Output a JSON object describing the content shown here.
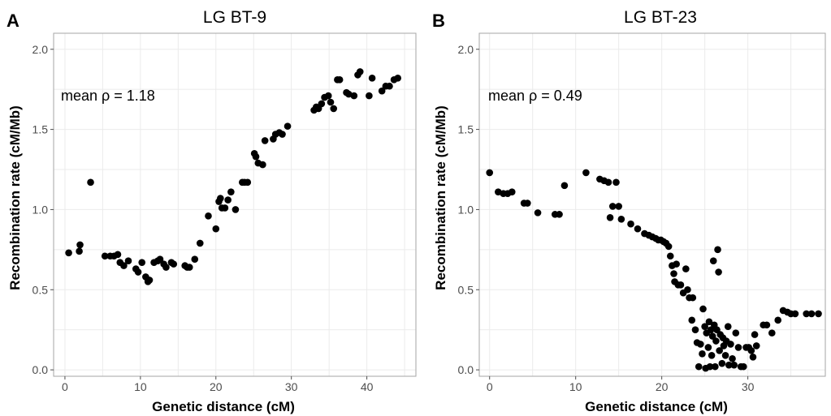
{
  "chart_data": [
    {
      "type": "scatter",
      "panel_label": "A",
      "title": "LG BT-9",
      "xlabel": "Genetic distance (cM)",
      "ylabel": "Recombination rate (cM/Mb)",
      "annotation": "mean ρ  = 1.18",
      "xlim": [
        -1.5,
        46.5
      ],
      "ylim": [
        -0.04,
        2.1
      ],
      "xticks": [
        0,
        10,
        20,
        30,
        40
      ],
      "yticks": [
        0.0,
        0.5,
        1.0,
        1.5,
        2.0
      ],
      "ytick_labels": [
        "0.0",
        "0.5",
        "1.0",
        "1.5",
        "2.0"
      ],
      "grid": true,
      "points": [
        [
          0.5,
          0.73
        ],
        [
          1.9,
          0.74
        ],
        [
          2.0,
          0.78
        ],
        [
          3.4,
          1.17
        ],
        [
          5.3,
          0.71
        ],
        [
          6.0,
          0.71
        ],
        [
          6.5,
          0.71
        ],
        [
          7.0,
          0.72
        ],
        [
          7.3,
          0.67
        ],
        [
          7.8,
          0.65
        ],
        [
          8.4,
          0.68
        ],
        [
          9.4,
          0.63
        ],
        [
          9.7,
          0.61
        ],
        [
          10.2,
          0.67
        ],
        [
          10.7,
          0.58
        ],
        [
          11.0,
          0.55
        ],
        [
          11.2,
          0.56
        ],
        [
          11.8,
          0.67
        ],
        [
          12.3,
          0.68
        ],
        [
          12.6,
          0.69
        ],
        [
          13.1,
          0.66
        ],
        [
          13.4,
          0.64
        ],
        [
          14.1,
          0.67
        ],
        [
          14.4,
          0.66
        ],
        [
          15.9,
          0.65
        ],
        [
          16.2,
          0.64
        ],
        [
          16.5,
          0.64
        ],
        [
          17.2,
          0.69
        ],
        [
          17.9,
          0.79
        ],
        [
          19.0,
          0.96
        ],
        [
          20.0,
          0.88
        ],
        [
          20.4,
          1.05
        ],
        [
          20.6,
          1.07
        ],
        [
          20.8,
          1.01
        ],
        [
          21.2,
          1.01
        ],
        [
          21.6,
          1.06
        ],
        [
          22.0,
          1.11
        ],
        [
          22.6,
          1.0
        ],
        [
          23.5,
          1.17
        ],
        [
          23.8,
          1.17
        ],
        [
          24.2,
          1.17
        ],
        [
          25.1,
          1.35
        ],
        [
          25.3,
          1.33
        ],
        [
          25.6,
          1.29
        ],
        [
          26.2,
          1.28
        ],
        [
          26.5,
          1.43
        ],
        [
          27.6,
          1.44
        ],
        [
          27.9,
          1.47
        ],
        [
          28.4,
          1.48
        ],
        [
          28.8,
          1.47
        ],
        [
          29.5,
          1.52
        ],
        [
          33.0,
          1.62
        ],
        [
          33.3,
          1.64
        ],
        [
          33.6,
          1.63
        ],
        [
          34.0,
          1.66
        ],
        [
          34.4,
          1.7
        ],
        [
          34.9,
          1.71
        ],
        [
          35.2,
          1.67
        ],
        [
          35.6,
          1.63
        ],
        [
          36.1,
          1.81
        ],
        [
          36.4,
          1.81
        ],
        [
          37.3,
          1.73
        ],
        [
          37.6,
          1.72
        ],
        [
          38.3,
          1.71
        ],
        [
          38.8,
          1.84
        ],
        [
          39.1,
          1.86
        ],
        [
          40.3,
          1.71
        ],
        [
          40.7,
          1.82
        ],
        [
          42.0,
          1.74
        ],
        [
          42.5,
          1.77
        ],
        [
          43.0,
          1.77
        ],
        [
          43.6,
          1.81
        ],
        [
          44.1,
          1.82
        ]
      ]
    },
    {
      "type": "scatter",
      "panel_label": "B",
      "title": "LG BT-23",
      "xlabel": "Genetic distance (cM)",
      "ylabel": "Recombination rate (cM/Mb)",
      "annotation": "mean ρ  = 0.49",
      "xlim": [
        -1.2,
        39.0
      ],
      "ylim": [
        -0.04,
        2.1
      ],
      "xticks": [
        0,
        10,
        20,
        30
      ],
      "yticks": [
        0.0,
        0.5,
        1.0,
        1.5,
        2.0
      ],
      "ytick_labels": [
        "0.0",
        "0.5",
        "1.0",
        "1.5",
        "2.0"
      ],
      "grid": true,
      "points": [
        [
          0.0,
          1.23
        ],
        [
          1.0,
          1.11
        ],
        [
          1.6,
          1.1
        ],
        [
          2.1,
          1.1
        ],
        [
          2.6,
          1.11
        ],
        [
          4.0,
          1.04
        ],
        [
          4.4,
          1.04
        ],
        [
          5.6,
          0.98
        ],
        [
          7.6,
          0.97
        ],
        [
          8.1,
          0.97
        ],
        [
          8.7,
          1.15
        ],
        [
          11.2,
          1.23
        ],
        [
          12.8,
          1.19
        ],
        [
          13.3,
          1.18
        ],
        [
          13.8,
          1.17
        ],
        [
          14.0,
          0.95
        ],
        [
          14.3,
          1.02
        ],
        [
          14.7,
          1.17
        ],
        [
          15.0,
          1.02
        ],
        [
          15.3,
          0.94
        ],
        [
          16.4,
          0.91
        ],
        [
          17.2,
          0.88
        ],
        [
          18.0,
          0.85
        ],
        [
          18.5,
          0.84
        ],
        [
          18.9,
          0.83
        ],
        [
          19.3,
          0.82
        ],
        [
          19.6,
          0.81
        ],
        [
          19.9,
          0.81
        ],
        [
          20.2,
          0.8
        ],
        [
          20.5,
          0.79
        ],
        [
          20.8,
          0.77
        ],
        [
          21.0,
          0.71
        ],
        [
          21.2,
          0.65
        ],
        [
          21.4,
          0.6
        ],
        [
          21.5,
          0.55
        ],
        [
          21.7,
          0.66
        ],
        [
          21.9,
          0.53
        ],
        [
          22.2,
          0.53
        ],
        [
          22.5,
          0.48
        ],
        [
          22.8,
          0.63
        ],
        [
          23.0,
          0.5
        ],
        [
          23.2,
          0.45
        ],
        [
          23.5,
          0.31
        ],
        [
          23.6,
          0.45
        ],
        [
          23.9,
          0.25
        ],
        [
          24.1,
          0.17
        ],
        [
          24.3,
          0.02
        ],
        [
          24.5,
          0.16
        ],
        [
          24.7,
          0.1
        ],
        [
          24.8,
          0.38
        ],
        [
          25.0,
          0.27
        ],
        [
          25.1,
          0.01
        ],
        [
          25.2,
          0.23
        ],
        [
          25.4,
          0.14
        ],
        [
          25.5,
          0.3
        ],
        [
          25.6,
          0.02
        ],
        [
          25.7,
          0.25
        ],
        [
          25.8,
          0.09
        ],
        [
          25.9,
          0.21
        ],
        [
          26.0,
          0.68
        ],
        [
          26.1,
          0.28
        ],
        [
          26.2,
          0.02
        ],
        [
          26.3,
          0.18
        ],
        [
          26.4,
          0.25
        ],
        [
          26.5,
          0.75
        ],
        [
          26.6,
          0.61
        ],
        [
          26.7,
          0.12
        ],
        [
          26.8,
          0.22
        ],
        [
          27.0,
          0.04
        ],
        [
          27.1,
          0.2
        ],
        [
          27.2,
          0.15
        ],
        [
          27.4,
          0.09
        ],
        [
          27.5,
          0.18
        ],
        [
          27.7,
          0.27
        ],
        [
          27.8,
          0.03
        ],
        [
          28.0,
          0.16
        ],
        [
          28.2,
          0.07
        ],
        [
          28.4,
          0.03
        ],
        [
          28.6,
          0.23
        ],
        [
          28.9,
          0.14
        ],
        [
          29.2,
          0.02
        ],
        [
          29.5,
          0.02
        ],
        [
          29.8,
          0.14
        ],
        [
          30.1,
          0.14
        ],
        [
          30.4,
          0.12
        ],
        [
          30.6,
          0.08
        ],
        [
          30.8,
          0.22
        ],
        [
          31.0,
          0.15
        ],
        [
          31.8,
          0.28
        ],
        [
          32.2,
          0.28
        ],
        [
          32.8,
          0.23
        ],
        [
          33.5,
          0.31
        ],
        [
          34.1,
          0.37
        ],
        [
          34.6,
          0.36
        ],
        [
          35.0,
          0.35
        ],
        [
          35.5,
          0.35
        ],
        [
          36.8,
          0.35
        ],
        [
          37.4,
          0.35
        ],
        [
          38.2,
          0.35
        ]
      ]
    }
  ]
}
